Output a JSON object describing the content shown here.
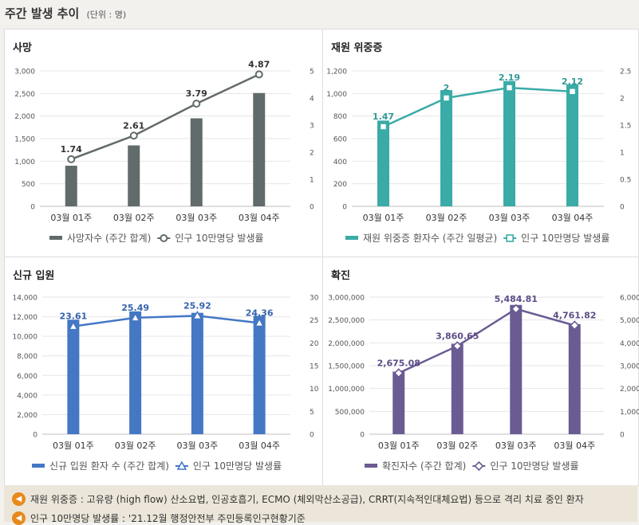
{
  "page": {
    "title": "주간 발생 추이",
    "unit": "(단위 : 명)"
  },
  "footnotes": [
    {
      "icon": "speaker-icon",
      "text": "재원 위중증 : 고유량 (high flow) 산소요법, 인공호흡기, ECMO (체외막산소공급), CRRT(지속적인대체요법) 등으로 격리 치료 중인 환자"
    },
    {
      "icon": "speaker-icon",
      "text": "인구 10만명당 발생률 : '21.12월 행정안전부 주민등록인구현황기준"
    }
  ],
  "chart_data": [
    {
      "id": "deaths",
      "type": "bar",
      "title": "사망",
      "categories": [
        "03월 01주",
        "03월 02주",
        "03월 03주",
        "03월 04주"
      ],
      "y_left": {
        "ticks": [
          "0",
          "500",
          "1,000",
          "1,500",
          "2,000",
          "2,500",
          "3,000"
        ],
        "lim": [
          0,
          3000
        ]
      },
      "y_right": {
        "ticks": [
          "0",
          "1",
          "2",
          "3",
          "4",
          "5"
        ],
        "lim": [
          0,
          5
        ]
      },
      "bar_series": {
        "name": "사망자수 (주간 합계)",
        "color": "#626b6b",
        "values": [
          900,
          1350,
          1950,
          2510
        ]
      },
      "line_series": {
        "name": "인구 10만명당 발생률",
        "color": "#626b6b",
        "marker": "circle",
        "values": [
          1.74,
          2.61,
          3.79,
          4.87
        ],
        "labels": [
          "1.74",
          "2.61",
          "3.79",
          "4.87"
        ]
      },
      "legend": "bottom",
      "label_color": "#333333"
    },
    {
      "id": "critical",
      "type": "bar",
      "title": "재원 위중증",
      "categories": [
        "03월 01주",
        "03월 02주",
        "03월 03주",
        "03월 04주"
      ],
      "y_left": {
        "ticks": [
          "0",
          "200",
          "400",
          "600",
          "800",
          "1,000",
          "1,200"
        ],
        "lim": [
          0,
          1200
        ]
      },
      "y_right": {
        "ticks": [
          "0",
          "0.5",
          "1",
          "1.5",
          "2",
          "2.5"
        ],
        "lim": [
          0,
          2.5
        ]
      },
      "bar_series": {
        "name": "재원 위중증 환자수 (주간 일평균)",
        "color": "#3aaba7",
        "values": [
          760,
          1030,
          1110,
          1080
        ]
      },
      "line_series": {
        "name": "인구 10만명당 발생률",
        "color": "#3aaba7",
        "marker": "square",
        "values": [
          1.47,
          2.0,
          2.19,
          2.12
        ],
        "labels": [
          "1.47",
          "2",
          "2.19",
          "2.12"
        ]
      },
      "legend": "bottom",
      "label_color": "#2f9a96"
    },
    {
      "id": "admissions",
      "type": "bar",
      "title": "신규 입원",
      "categories": [
        "03월 01주",
        "03월 02주",
        "03월 03주",
        "03월 04주"
      ],
      "y_left": {
        "ticks": [
          "0",
          "2,000",
          "4,000",
          "6,000",
          "8,000",
          "10,000",
          "12,000",
          "14,000"
        ],
        "lim": [
          0,
          14000
        ]
      },
      "y_right": {
        "ticks": [
          "0",
          "5",
          "10",
          "15",
          "20",
          "25",
          "30"
        ],
        "lim": [
          0,
          30
        ]
      },
      "bar_series": {
        "name": "신규 입원 환자 수 (주간 합계)",
        "color": "#4477c4",
        "values": [
          11700,
          12550,
          12400,
          12100
        ]
      },
      "line_series": {
        "name": "인구 10만명당 발생률",
        "color": "#4477c4",
        "marker": "triangle",
        "values": [
          23.61,
          25.49,
          25.92,
          24.36
        ],
        "labels": [
          "23.61",
          "25.49",
          "25.92",
          "24.36"
        ]
      },
      "legend": "bottom",
      "label_color": "#3563ad"
    },
    {
      "id": "confirmed",
      "type": "bar",
      "title": "확진",
      "categories": [
        "03월 01주",
        "03월 02주",
        "03월 03주",
        "03월 04주"
      ],
      "y_left": {
        "ticks": [
          "0",
          "500,000",
          "1,000,000",
          "1,500,000",
          "2,000,000",
          "2,500,000",
          "3,000,000"
        ],
        "lim": [
          0,
          3000000
        ]
      },
      "y_right": {
        "ticks": [
          "0",
          "1,000",
          "2,000",
          "3,000",
          "4,000",
          "5,000",
          "6,000"
        ],
        "lim": [
          0,
          6000
        ]
      },
      "bar_series": {
        "name": "확진자수 (주간 합계)",
        "color": "#6b5b93",
        "values": [
          1370000,
          1980000,
          2830000,
          2410000
        ]
      },
      "line_series": {
        "name": "인구 10만명당 발생률",
        "color": "#6b5b93",
        "marker": "diamond",
        "values": [
          2675.08,
          3860.65,
          5484.81,
          4761.82
        ],
        "labels": [
          "2,675.08",
          "3,860.65",
          "5,484.81",
          "4,761.82"
        ]
      },
      "legend": "bottom",
      "label_color": "#5d4d86"
    }
  ]
}
